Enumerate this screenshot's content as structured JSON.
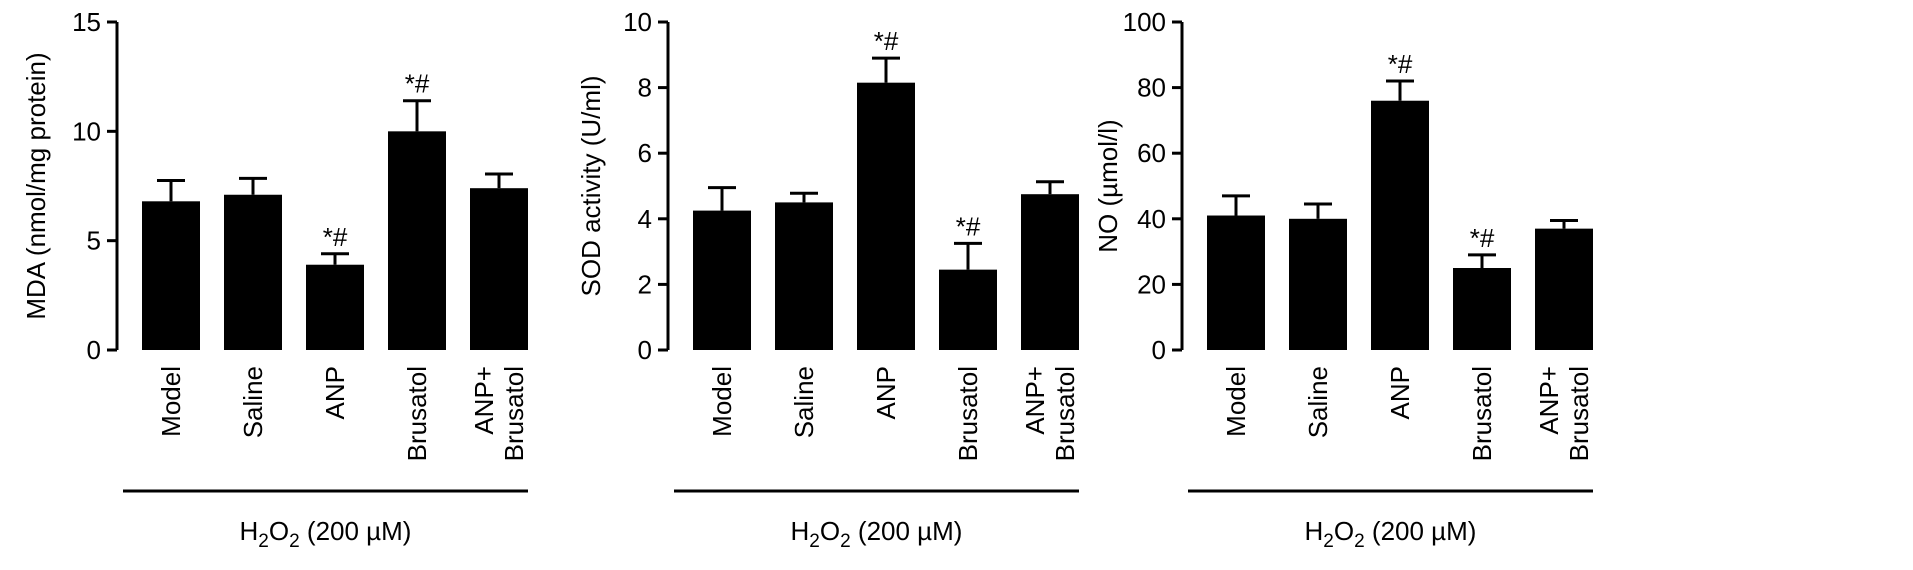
{
  "chart_data": [
    {
      "type": "bar",
      "categories": [
        "Model",
        "Saline",
        "ANP",
        "Brusatol",
        "ANP+|Brusatol"
      ],
      "values": [
        6.8,
        7.1,
        3.9,
        10.0,
        7.4
      ],
      "errors": [
        0.95,
        0.75,
        0.5,
        1.4,
        0.65
      ],
      "annotations": [
        "",
        "",
        "*#",
        "*#",
        ""
      ],
      "ylabel": "MDA (nmol/mg protein)",
      "ylim": [
        0,
        15
      ],
      "yticks": [
        0,
        5,
        10,
        15
      ],
      "group_label": {
        "base": "H",
        "sub1": "2",
        "mid": "O",
        "sub2": "2",
        "tail": " (200 µM)"
      },
      "bar_color": "#000000"
    },
    {
      "type": "bar",
      "categories": [
        "Model",
        "Saline",
        "ANP",
        "Brusatol",
        "ANP+|Brusatol"
      ],
      "values": [
        4.25,
        4.5,
        8.15,
        2.45,
        4.75
      ],
      "errors": [
        0.7,
        0.28,
        0.75,
        0.8,
        0.38
      ],
      "annotations": [
        "",
        "",
        "*#",
        "*#",
        ""
      ],
      "ylabel": "SOD activity (U/ml)",
      "ylim": [
        0,
        10
      ],
      "yticks": [
        0,
        2,
        4,
        6,
        8,
        10
      ],
      "group_label": {
        "base": "H",
        "sub1": "2",
        "mid": "O",
        "sub2": "2",
        "tail": " (200 µM)"
      },
      "bar_color": "#000000"
    },
    {
      "type": "bar",
      "categories": [
        "Model",
        "Saline",
        "ANP",
        "Brusatol",
        "ANP+|Brusatol"
      ],
      "values": [
        41,
        40,
        76,
        25,
        37
      ],
      "errors": [
        6,
        4.5,
        6,
        4,
        2.5
      ],
      "annotations": [
        "",
        "",
        "*#",
        "*#",
        ""
      ],
      "ylabel": "NO (µmol/l)",
      "ylim": [
        0,
        100
      ],
      "yticks": [
        0,
        20,
        40,
        60,
        80,
        100
      ],
      "group_label": {
        "base": "H",
        "sub1": "2",
        "mid": "O",
        "sub2": "2",
        "tail": " (200 µM)"
      },
      "bar_color": "#000000"
    }
  ]
}
